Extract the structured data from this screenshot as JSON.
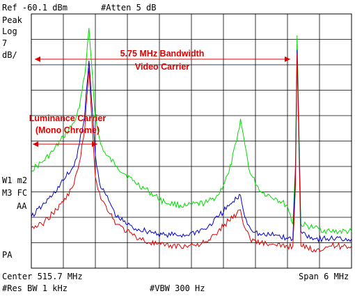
{
  "header": {
    "ref": "Ref -60.1 dBm",
    "atten": "#Atten 5 dB"
  },
  "left_labels": {
    "detector": "Peak",
    "scale": "Log",
    "per_div_value": "7",
    "per_div_unit": "dB/",
    "w1": "W1 m2",
    "m3": "M3 FC",
    "aa": "AA",
    "pa": "PA"
  },
  "footer": {
    "center": "Center 515.7 MHz",
    "span": "Span 6 MHz",
    "rbw": "#Res BW 1 kHz",
    "vbw": "#VBW 300 Hz"
  },
  "annotations": {
    "bandwidth_line1": "5.75 MHz Bandwidth",
    "bandwidth_line2": "Video Carrier",
    "luminance_line1": "Luminance Carrier",
    "luminance_line2": "(Mono Chrome)"
  },
  "colors": {
    "green": "#00dd00",
    "blue": "#0000cc",
    "red": "#dd0000",
    "annotation": "#e00000",
    "grid": "#000000"
  },
  "chart_data": {
    "type": "line",
    "xlabel": "",
    "ylabel": "",
    "xlim": [
      512.7,
      518.7
    ],
    "ylim": [
      -130.1,
      -60.1
    ],
    "grid": true,
    "series": [
      {
        "name": "",
        "color": "#00dd00",
        "x": [
          512.7,
          512.9,
          513.1,
          513.3,
          513.5,
          513.6,
          513.7,
          513.78,
          513.85,
          513.9,
          514.0,
          514.1,
          514.3,
          514.6,
          514.9,
          515.2,
          515.6,
          516.0,
          516.2,
          516.4,
          516.55,
          516.62,
          516.7,
          516.8,
          517.0,
          517.3,
          517.5,
          517.6,
          517.65,
          517.68,
          517.75,
          518.0,
          518.3,
          518.7
        ],
        "y": [
          -103,
          -101,
          -98,
          -94,
          -90,
          -86,
          -77,
          -64,
          -78,
          -89,
          -96,
          -99,
          -102,
          -106,
          -109,
          -112,
          -113,
          -112,
          -110,
          -104,
          -95,
          -89,
          -96,
          -104,
          -109,
          -111,
          -113,
          -118,
          -101,
          -66,
          -118,
          -119,
          -120,
          -120
        ]
      },
      {
        "name": "",
        "color": "#0000cc",
        "x": [
          512.7,
          512.9,
          513.1,
          513.3,
          513.5,
          513.6,
          513.7,
          513.78,
          513.85,
          513.9,
          514.0,
          514.1,
          514.3,
          514.6,
          514.9,
          515.2,
          515.6,
          516.0,
          516.2,
          516.4,
          516.55,
          516.62,
          516.7,
          516.8,
          517.0,
          517.3,
          517.5,
          517.6,
          517.65,
          517.68,
          517.75,
          518.0,
          518.3,
          518.7
        ],
        "y": [
          -116,
          -113,
          -110,
          -106,
          -102,
          -96,
          -88,
          -73,
          -88,
          -99,
          -108,
          -110,
          -116,
          -119,
          -120,
          -121,
          -121,
          -119,
          -116,
          -113,
          -111,
          -110,
          -116,
          -119,
          -121,
          -121,
          -122,
          -122,
          -104,
          -70,
          -120,
          -122,
          -122,
          -122
        ]
      },
      {
        "name": "",
        "color": "#dd0000",
        "x": [
          512.7,
          512.9,
          513.1,
          513.3,
          513.5,
          513.6,
          513.7,
          513.78,
          513.85,
          513.9,
          514.0,
          514.1,
          514.3,
          514.6,
          514.9,
          515.2,
          515.6,
          516.0,
          516.2,
          516.4,
          516.55,
          516.62,
          516.7,
          516.8,
          517.0,
          517.3,
          517.5,
          517.6,
          517.65,
          517.68,
          517.75,
          518.0,
          518.3,
          518.7
        ],
        "y": [
          -119,
          -118,
          -115,
          -112,
          -107,
          -101,
          -92,
          -75,
          -93,
          -105,
          -111,
          -113,
          -118,
          -121,
          -123,
          -124,
          -124,
          -123,
          -120,
          -117,
          -115,
          -114,
          -119,
          -122,
          -123,
          -124,
          -124,
          -124,
          -107,
          -71,
          -124,
          -125,
          -124,
          -124
        ]
      }
    ]
  }
}
